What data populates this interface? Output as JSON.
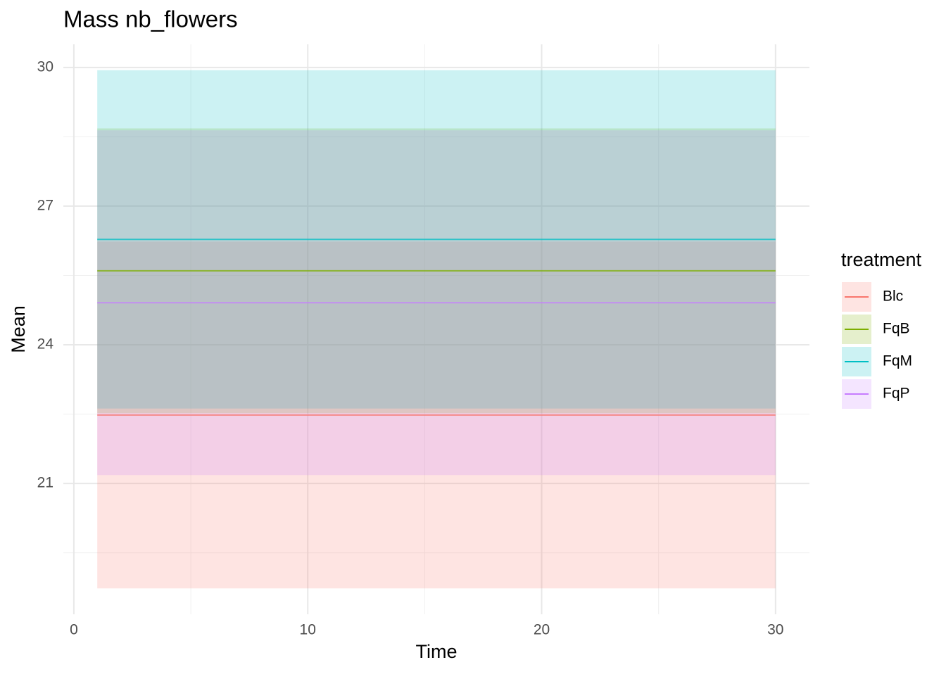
{
  "chart_data": {
    "type": "ribbon_line",
    "title": "Mass nb_flowers",
    "x_label": "Time",
    "y_label": "Mean",
    "x": [
      1,
      30
    ],
    "series": [
      {
        "name": "Blc",
        "color": "#F8766D",
        "values": [
          22.48,
          22.48
        ],
        "lower": [
          18.73,
          18.73
        ],
        "upper": [
          26.23,
          26.23
        ]
      },
      {
        "name": "FqB",
        "color": "#7CAE00",
        "values": [
          25.6,
          25.6
        ],
        "lower": [
          22.52,
          22.52
        ],
        "upper": [
          28.68,
          28.68
        ]
      },
      {
        "name": "FqM",
        "color": "#00BFC4",
        "values": [
          26.28,
          26.28
        ],
        "lower": [
          22.62,
          22.62
        ],
        "upper": [
          29.94,
          29.94
        ]
      },
      {
        "name": "FqP",
        "color": "#C77CFF",
        "values": [
          24.91,
          24.91
        ],
        "lower": [
          21.18,
          21.18
        ],
        "upper": [
          28.64,
          28.64
        ]
      }
    ],
    "legend_title": "treatment",
    "legend_position": "right",
    "xlim": [
      -0.45,
      31.45
    ],
    "xticks": [
      0,
      10,
      20,
      30
    ],
    "x_minor_ticks": [
      5,
      15,
      25
    ],
    "ylim": [
      18.17,
      30.5
    ],
    "yticks": [
      21,
      24,
      27,
      30
    ],
    "y_minor_ticks": [
      19.5,
      22.5,
      25.5,
      28.5
    ],
    "grid": true,
    "ribbon_opacity": 0.2
  }
}
